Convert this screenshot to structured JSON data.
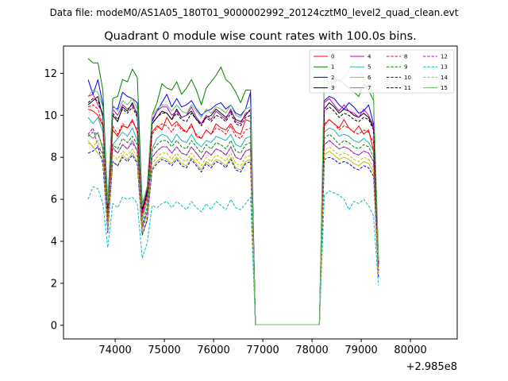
{
  "figure": {
    "suptitle": "Data file: modeM0/AS1A05_180T01_9000002992_20124cztM0_level2_quad_clean.evt",
    "title": "Quadrant 0 module wise count rates with 100.0s bins.",
    "x_offset_label": "+2.985e8"
  },
  "chart_data": {
    "type": "line",
    "title": "Quadrant 0 module wise count rates with 100.0s bins.",
    "xlabel": "",
    "ylabel": "",
    "x_offset": "+2.985e8",
    "xlim": [
      72950,
      80950
    ],
    "ylim": [
      -0.65,
      13.3
    ],
    "xticks": [
      74000,
      75000,
      76000,
      77000,
      78000,
      79000,
      80000
    ],
    "yticks": [
      0,
      2,
      4,
      6,
      8,
      10,
      12
    ],
    "grid": false,
    "legend": {
      "placement": "top-right",
      "columns": 4
    },
    "x_start": 73450,
    "x_step": 100,
    "series": [
      {
        "name": "0",
        "color": "#ff0000",
        "dash": "solid",
        "values": [
          10.3,
          10.2,
          10.0,
          9.5,
          5.3,
          9.3,
          9.0,
          9.5,
          9.4,
          9.8,
          9.2,
          5.3,
          6.2,
          9.2,
          9.5,
          9.3,
          9.9,
          9.5,
          9.7,
          9.4,
          9.2,
          9.6,
          9.0,
          8.9,
          9.3,
          9.1,
          9.6,
          9.4,
          9.3,
          9.6,
          9.2,
          9.1,
          9.8,
          9.7,
          0.03,
          0.03,
          0.03,
          0.03,
          0.03,
          0.03,
          0.03,
          0.03,
          0.03,
          0.03,
          0.03,
          0.03,
          0.03,
          0.03,
          9.5,
          9.8,
          9.6,
          9.4,
          9.8,
          9.4,
          9.2,
          9.5,
          9.1,
          9.3,
          8.3,
          2.9
        ]
      },
      {
        "name": "1",
        "color": "#008000",
        "dash": "solid",
        "values": [
          12.7,
          12.5,
          12.5,
          11.2,
          5.5,
          10.8,
          10.9,
          11.7,
          11.6,
          12.2,
          11.8,
          5.7,
          6.6,
          10.0,
          10.6,
          11.5,
          11.3,
          11.2,
          11.6,
          11.0,
          11.3,
          11.7,
          11.2,
          10.5,
          11.3,
          11.6,
          11.9,
          12.3,
          11.7,
          11.5,
          11.1,
          10.6,
          11.2,
          11.2,
          0.03,
          0.03,
          0.03,
          0.03,
          0.03,
          0.03,
          0.03,
          0.03,
          0.03,
          0.03,
          0.03,
          0.03,
          0.03,
          0.03,
          11.9,
          11.5,
          11.6,
          11.7,
          11.5,
          11.3,
          11.1,
          10.9,
          11.5,
          11.2,
          10.7,
          3.2
        ]
      },
      {
        "name": "2",
        "color": "#0000ff",
        "dash": "solid",
        "values": [
          11.7,
          11.0,
          11.7,
          10.5,
          5.9,
          10.4,
          10.3,
          11.1,
          10.9,
          10.8,
          10.6,
          5.8,
          6.5,
          9.7,
          10.2,
          10.6,
          11.0,
          10.4,
          10.8,
          10.4,
          10.5,
          10.7,
          10.3,
          10.0,
          10.2,
          10.3,
          10.5,
          10.6,
          10.3,
          10.5,
          10.1,
          10.0,
          10.3,
          11.1,
          0.03,
          0.03,
          0.03,
          0.03,
          0.03,
          0.03,
          0.03,
          0.03,
          0.03,
          0.03,
          0.03,
          0.03,
          0.03,
          0.03,
          10.7,
          10.9,
          10.8,
          10.5,
          10.3,
          10.6,
          10.4,
          10.1,
          10.2,
          10.5,
          9.6,
          3.0
        ]
      },
      {
        "name": "3",
        "color": "#000000",
        "dash": "solid",
        "values": [
          10.5,
          10.7,
          10.9,
          9.9,
          5.6,
          10.0,
          9.7,
          10.4,
          10.2,
          10.6,
          10.0,
          5.5,
          6.4,
          9.6,
          9.9,
          10.2,
          10.1,
          9.8,
          10.3,
          9.9,
          10.0,
          10.2,
          9.8,
          9.6,
          9.9,
          10.0,
          10.3,
          10.1,
          9.9,
          10.2,
          9.8,
          9.7,
          10.0,
          10.3,
          0.03,
          0.03,
          0.03,
          0.03,
          0.03,
          0.03,
          0.03,
          0.03,
          0.03,
          0.03,
          0.03,
          0.03,
          0.03,
          0.03,
          10.3,
          10.6,
          10.4,
          10.1,
          10.3,
          10.2,
          10.0,
          9.9,
          10.1,
          9.9,
          9.4,
          2.9
        ]
      },
      {
        "name": "4",
        "color": "#bf00bf",
        "dash": "solid",
        "values": [
          10.9,
          11.0,
          10.5,
          10.1,
          5.7,
          10.3,
          10.0,
          10.5,
          10.3,
          10.5,
          10.1,
          5.4,
          6.3,
          9.8,
          10.2,
          10.4,
          10.4,
          10.0,
          10.2,
          9.9,
          10.0,
          10.4,
          9.9,
          9.6,
          10.0,
          9.8,
          10.2,
          10.0,
          9.8,
          10.3,
          9.7,
          9.6,
          10.1,
          10.2,
          0.03,
          0.03,
          0.03,
          0.03,
          0.03,
          0.03,
          0.03,
          0.03,
          0.03,
          0.03,
          0.03,
          0.03,
          0.03,
          0.03,
          10.6,
          10.8,
          10.5,
          10.2,
          10.5,
          10.2,
          10.1,
          9.9,
          10.3,
          10.0,
          9.5,
          3.0
        ]
      },
      {
        "name": "5",
        "color": "#20b2aa",
        "dash": "solid",
        "values": [
          9.9,
          9.6,
          9.9,
          9.2,
          5.2,
          8.6,
          8.9,
          9.2,
          9.0,
          9.4,
          8.8,
          5.0,
          5.9,
          8.4,
          8.9,
          9.1,
          9.0,
          8.7,
          9.1,
          8.8,
          8.7,
          9.1,
          8.7,
          8.5,
          8.8,
          8.7,
          9.0,
          8.9,
          8.8,
          9.1,
          8.6,
          8.5,
          8.9,
          9.0,
          0.03,
          0.03,
          0.03,
          0.03,
          0.03,
          0.03,
          0.03,
          0.03,
          0.03,
          0.03,
          0.03,
          0.03,
          0.03,
          0.03,
          9.2,
          9.4,
          9.3,
          9.0,
          9.1,
          9.0,
          8.8,
          8.7,
          8.9,
          8.7,
          8.3,
          2.6
        ]
      },
      {
        "name": "6",
        "color": "#bfbf00",
        "dash": "solid",
        "values": [
          8.8,
          8.5,
          8.2,
          7.9,
          4.6,
          7.8,
          7.6,
          8.1,
          7.9,
          8.2,
          7.8,
          4.3,
          5.0,
          7.5,
          7.8,
          8.0,
          7.9,
          7.7,
          8.0,
          7.7,
          7.6,
          8.0,
          7.7,
          7.4,
          7.8,
          7.6,
          7.9,
          7.8,
          7.6,
          8.0,
          7.5,
          7.4,
          7.8,
          7.9,
          0.03,
          0.03,
          0.03,
          0.03,
          0.03,
          0.03,
          0.03,
          0.03,
          0.03,
          0.03,
          0.03,
          0.03,
          0.03,
          0.03,
          8.1,
          8.3,
          8.1,
          7.9,
          8.0,
          7.9,
          7.7,
          7.6,
          7.8,
          7.7,
          7.3,
          2.3
        ]
      },
      {
        "name": "7",
        "color": "#808080",
        "dash": "solid",
        "values": [
          9.1,
          8.9,
          9.2,
          8.4,
          4.8,
          8.5,
          8.2,
          8.6,
          8.4,
          8.8,
          8.3,
          4.7,
          5.4,
          8.0,
          8.3,
          8.5,
          8.5,
          8.2,
          8.5,
          8.2,
          8.1,
          8.5,
          8.2,
          7.9,
          8.3,
          8.1,
          8.4,
          8.3,
          8.1,
          8.5,
          8.0,
          7.9,
          8.3,
          8.4,
          0.03,
          0.03,
          0.03,
          0.03,
          0.03,
          0.03,
          0.03,
          0.03,
          0.03,
          0.03,
          0.03,
          0.03,
          0.03,
          0.03,
          8.6,
          8.8,
          8.6,
          8.4,
          8.5,
          8.4,
          8.2,
          8.1,
          8.3,
          8.2,
          7.8,
          2.5
        ]
      },
      {
        "name": "8",
        "color": "#ff0000",
        "dash": "dashed",
        "values": [
          10.4,
          10.5,
          10.3,
          9.5,
          5.2,
          9.5,
          9.1,
          9.6,
          9.4,
          9.7,
          9.3,
          5.2,
          6.1,
          9.1,
          9.4,
          9.6,
          9.5,
          9.2,
          9.6,
          9.3,
          9.2,
          9.5,
          9.1,
          8.9,
          9.3,
          9.1,
          9.4,
          9.3,
          9.1,
          9.5,
          9.0,
          8.9,
          9.3,
          9.4,
          0.03,
          0.03,
          0.03,
          0.03,
          0.03,
          0.03,
          0.03,
          0.03,
          0.03,
          0.03,
          0.03,
          0.03,
          0.03,
          0.03,
          9.6,
          9.8,
          9.6,
          9.3,
          9.5,
          9.4,
          9.2,
          9.1,
          9.3,
          9.2,
          8.7,
          2.8
        ]
      },
      {
        "name": "9",
        "color": "#008000",
        "dash": "dashed",
        "values": [
          9.0,
          9.2,
          9.1,
          8.5,
          4.9,
          8.6,
          8.4,
          8.9,
          8.7,
          9.0,
          8.6,
          4.8,
          5.6,
          8.3,
          8.6,
          8.8,
          8.8,
          8.5,
          8.8,
          8.5,
          8.4,
          8.8,
          8.5,
          8.2,
          8.6,
          8.4,
          8.7,
          8.6,
          8.4,
          8.8,
          8.3,
          8.2,
          8.6,
          8.7,
          0.03,
          0.03,
          0.03,
          0.03,
          0.03,
          0.03,
          0.03,
          0.03,
          0.03,
          0.03,
          0.03,
          0.03,
          0.03,
          0.03,
          8.9,
          9.1,
          8.9,
          8.6,
          8.8,
          8.7,
          8.5,
          8.4,
          8.6,
          8.5,
          8.0,
          2.6
        ]
      },
      {
        "name": "10",
        "color": "#0000ff",
        "dash": "dashed",
        "values": [
          8.2,
          8.3,
          8.5,
          7.7,
          4.4,
          7.8,
          7.6,
          8.0,
          7.8,
          8.1,
          7.7,
          4.3,
          5.0,
          7.4,
          7.7,
          7.9,
          7.8,
          7.6,
          7.9,
          7.6,
          7.5,
          7.9,
          7.6,
          7.3,
          7.7,
          7.5,
          7.8,
          7.7,
          7.5,
          7.9,
          7.4,
          7.3,
          7.7,
          7.8,
          0.03,
          0.03,
          0.03,
          0.03,
          0.03,
          0.03,
          0.03,
          0.03,
          0.03,
          0.03,
          0.03,
          0.03,
          0.03,
          0.03,
          7.9,
          8.0,
          7.9,
          7.7,
          7.8,
          7.7,
          7.5,
          7.4,
          7.6,
          7.5,
          7.1,
          2.3
        ]
      },
      {
        "name": "11",
        "color": "#000000",
        "dash": "dashed",
        "values": [
          10.6,
          10.8,
          10.7,
          10.0,
          5.6,
          10.1,
          9.8,
          10.3,
          10.1,
          10.4,
          9.9,
          5.5,
          6.3,
          9.6,
          9.9,
          10.1,
          10.1,
          9.8,
          10.1,
          9.8,
          9.7,
          10.1,
          9.8,
          9.5,
          9.9,
          9.7,
          10.0,
          9.9,
          9.7,
          10.1,
          9.6,
          9.5,
          9.9,
          10.0,
          0.03,
          0.03,
          0.03,
          0.03,
          0.03,
          0.03,
          0.03,
          0.03,
          0.03,
          0.03,
          0.03,
          0.03,
          0.03,
          0.03,
          10.2,
          10.4,
          10.2,
          9.9,
          10.1,
          10.0,
          9.8,
          9.7,
          9.9,
          9.8,
          9.3,
          2.9
        ]
      },
      {
        "name": "12",
        "color": "#bf00bf",
        "dash": "dashed",
        "values": [
          9.1,
          9.4,
          8.5,
          8.2,
          4.7,
          8.4,
          8.2,
          8.6,
          8.4,
          8.7,
          8.3,
          4.6,
          5.4,
          8.0,
          8.3,
          8.5,
          8.5,
          8.2,
          8.5,
          8.2,
          8.1,
          8.5,
          8.2,
          7.9,
          8.3,
          8.1,
          8.4,
          8.3,
          8.1,
          8.5,
          8.0,
          7.9,
          8.3,
          8.4,
          0.03,
          0.03,
          0.03,
          0.03,
          0.03,
          0.03,
          0.03,
          0.03,
          0.03,
          0.03,
          0.03,
          0.03,
          0.03,
          0.03,
          8.6,
          8.8,
          8.6,
          8.4,
          8.5,
          8.4,
          8.2,
          8.1,
          8.3,
          8.2,
          7.8,
          2.5
        ]
      },
      {
        "name": "13",
        "color": "#00bfbf",
        "dash": "dashed",
        "values": [
          6.0,
          6.6,
          6.5,
          5.8,
          3.7,
          5.8,
          5.6,
          6.1,
          6.0,
          6.1,
          5.8,
          3.2,
          3.9,
          5.7,
          5.6,
          5.8,
          5.9,
          5.6,
          5.9,
          5.7,
          5.5,
          5.9,
          5.6,
          5.4,
          5.8,
          5.5,
          5.9,
          5.7,
          5.5,
          6.0,
          5.6,
          5.5,
          5.8,
          6.1,
          0.03,
          0.03,
          0.03,
          0.03,
          0.03,
          0.03,
          0.03,
          0.03,
          0.03,
          0.03,
          0.03,
          0.03,
          0.03,
          0.03,
          6.2,
          6.4,
          6.3,
          6.2,
          6.0,
          5.5,
          5.9,
          5.8,
          6.0,
          5.7,
          5.2,
          1.9
        ]
      },
      {
        "name": "14",
        "color": "#bfbf00",
        "dash": "dashed",
        "values": [
          8.7,
          8.5,
          8.8,
          8.0,
          4.6,
          8.1,
          7.9,
          8.3,
          8.1,
          8.4,
          8.0,
          4.5,
          5.2,
          7.7,
          8.0,
          8.2,
          8.2,
          7.9,
          8.2,
          7.9,
          7.8,
          8.2,
          7.9,
          7.6,
          8.0,
          7.8,
          8.1,
          8.0,
          7.8,
          8.2,
          7.7,
          7.6,
          8.0,
          8.1,
          0.03,
          0.03,
          0.03,
          0.03,
          0.03,
          0.03,
          0.03,
          0.03,
          0.03,
          0.03,
          0.03,
          0.03,
          0.03,
          0.03,
          8.3,
          8.5,
          8.3,
          8.1,
          8.2,
          8.1,
          7.9,
          7.8,
          8.0,
          7.9,
          7.5,
          2.4
        ]
      },
      {
        "name": "15",
        "color": "#66bb66",
        "dash": "solid",
        "values": [
          10.9,
          11.2,
          11.1,
          10.4,
          5.8,
          10.5,
          10.2,
          10.7,
          10.5,
          10.8,
          10.3,
          5.7,
          6.6,
          10.0,
          10.3,
          10.5,
          10.5,
          10.2,
          10.5,
          10.2,
          10.1,
          10.5,
          10.2,
          9.9,
          10.3,
          10.1,
          10.4,
          10.3,
          10.1,
          10.5,
          10.0,
          9.9,
          10.3,
          10.4,
          0.03,
          0.03,
          0.03,
          0.03,
          0.03,
          0.03,
          0.03,
          0.03,
          0.03,
          0.03,
          0.03,
          0.03,
          0.03,
          0.03,
          11.9,
          12.1,
          12.0,
          11.6,
          11.8,
          12.2,
          12.5,
          12.4,
          11.7,
          11.5,
          11.0,
          3.1
        ]
      }
    ]
  }
}
